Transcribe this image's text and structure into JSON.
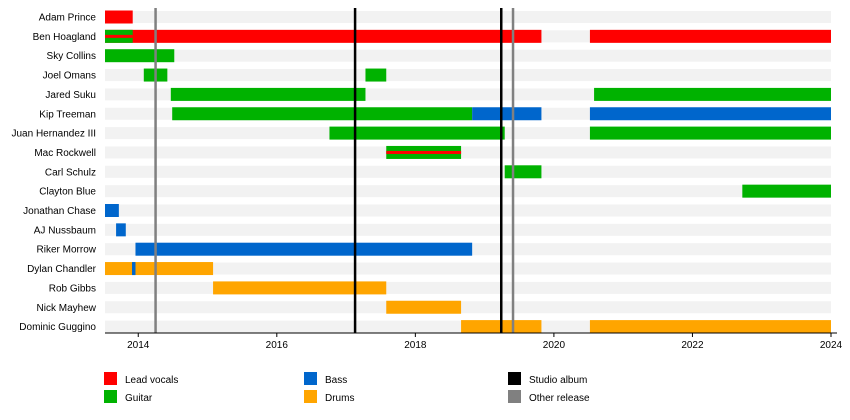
{
  "chart_data": {
    "type": "timeline",
    "title": "",
    "xlabel": "",
    "ylabel": "",
    "xlim": [
      2013.52,
      2024.0
    ],
    "xticks": [
      2014,
      2016,
      2018,
      2020,
      2022,
      2024
    ],
    "grid": false,
    "legend_position": "bottom",
    "colors": {
      "lead_vocals": "#ff0000",
      "guitar": "#00b200",
      "bass": "#0066cc",
      "drums": "#ffa500",
      "studio_album": "#000000",
      "other_release": "#808080",
      "row_band": "#f2f2f2"
    },
    "legend": [
      {
        "key": "lead_vocals",
        "label": "Lead vocals",
        "kind": "bar"
      },
      {
        "key": "guitar",
        "label": "Guitar",
        "kind": "bar"
      },
      {
        "key": "bass",
        "label": "Bass",
        "kind": "bar"
      },
      {
        "key": "drums",
        "label": "Drums",
        "kind": "bar"
      },
      {
        "key": "studio_album",
        "label": "Studio album",
        "kind": "line"
      },
      {
        "key": "other_release",
        "label": "Other release",
        "kind": "line"
      }
    ],
    "members": [
      {
        "name": "Adam Prince",
        "periods": [
          {
            "role": "lead_vocals",
            "start": 2013.52,
            "end": 2013.92
          }
        ]
      },
      {
        "name": "Ben Hoagland",
        "periods": [
          {
            "role": "lead_vocals",
            "start": 2013.52,
            "end": 2019.82
          },
          {
            "role": "guitar",
            "start": 2013.52,
            "end": 2013.92,
            "secondary": "lead_vocals"
          },
          {
            "role": "lead_vocals",
            "start": 2020.52,
            "end": 2024.0
          }
        ]
      },
      {
        "name": "Sky Collins",
        "periods": [
          {
            "role": "guitar",
            "start": 2013.52,
            "end": 2014.52
          }
        ]
      },
      {
        "name": "Joel Omans",
        "periods": [
          {
            "role": "guitar",
            "start": 2014.08,
            "end": 2014.42
          },
          {
            "role": "guitar",
            "start": 2017.28,
            "end": 2017.58
          }
        ]
      },
      {
        "name": "Jared Suku",
        "periods": [
          {
            "role": "guitar",
            "start": 2014.47,
            "end": 2017.28
          },
          {
            "role": "guitar",
            "start": 2020.58,
            "end": 2024.0
          }
        ]
      },
      {
        "name": "Kip Treeman",
        "periods": [
          {
            "role": "guitar",
            "start": 2014.49,
            "end": 2018.82
          },
          {
            "role": "bass",
            "start": 2018.82,
            "end": 2019.82
          },
          {
            "role": "bass",
            "start": 2020.52,
            "end": 2024.0
          }
        ]
      },
      {
        "name": "Juan Hernandez III",
        "periods": [
          {
            "role": "guitar",
            "start": 2016.76,
            "end": 2019.29
          },
          {
            "role": "guitar",
            "start": 2020.52,
            "end": 2024.0
          }
        ]
      },
      {
        "name": "Mac Rockwell",
        "periods": [
          {
            "role": "guitar",
            "start": 2017.58,
            "end": 2018.66,
            "secondary": "lead_vocals"
          }
        ]
      },
      {
        "name": "Carl Schulz",
        "periods": [
          {
            "role": "guitar",
            "start": 2019.29,
            "end": 2019.82
          }
        ]
      },
      {
        "name": "Clayton Blue",
        "periods": [
          {
            "role": "guitar",
            "start": 2022.72,
            "end": 2024.0
          }
        ]
      },
      {
        "name": "Jonathan Chase",
        "periods": [
          {
            "role": "bass",
            "start": 2013.52,
            "end": 2013.72
          }
        ]
      },
      {
        "name": "AJ Nussbaum",
        "periods": [
          {
            "role": "bass",
            "start": 2013.68,
            "end": 2013.82
          }
        ]
      },
      {
        "name": "Riker Morrow",
        "periods": [
          {
            "role": "bass",
            "start": 2013.96,
            "end": 2018.82
          }
        ]
      },
      {
        "name": "Dylan Chandler",
        "periods": [
          {
            "role": "drums",
            "start": 2013.52,
            "end": 2015.08
          },
          {
            "role": "bass",
            "start": 2013.91,
            "end": 2013.96
          }
        ]
      },
      {
        "name": "Rob Gibbs",
        "periods": [
          {
            "role": "drums",
            "start": 2015.08,
            "end": 2017.58
          }
        ]
      },
      {
        "name": "Nick Mayhew",
        "periods": [
          {
            "role": "drums",
            "start": 2017.58,
            "end": 2018.66
          }
        ]
      },
      {
        "name": "Dominic Guggino",
        "periods": [
          {
            "role": "drums",
            "start": 2018.66,
            "end": 2019.82
          },
          {
            "role": "drums",
            "start": 2020.52,
            "end": 2024.0
          }
        ]
      }
    ],
    "events": [
      {
        "type": "other_release",
        "date": 2014.25
      },
      {
        "type": "studio_album",
        "date": 2017.13
      },
      {
        "type": "studio_album",
        "date": 2019.24
      },
      {
        "type": "other_release",
        "date": 2019.41
      }
    ]
  }
}
